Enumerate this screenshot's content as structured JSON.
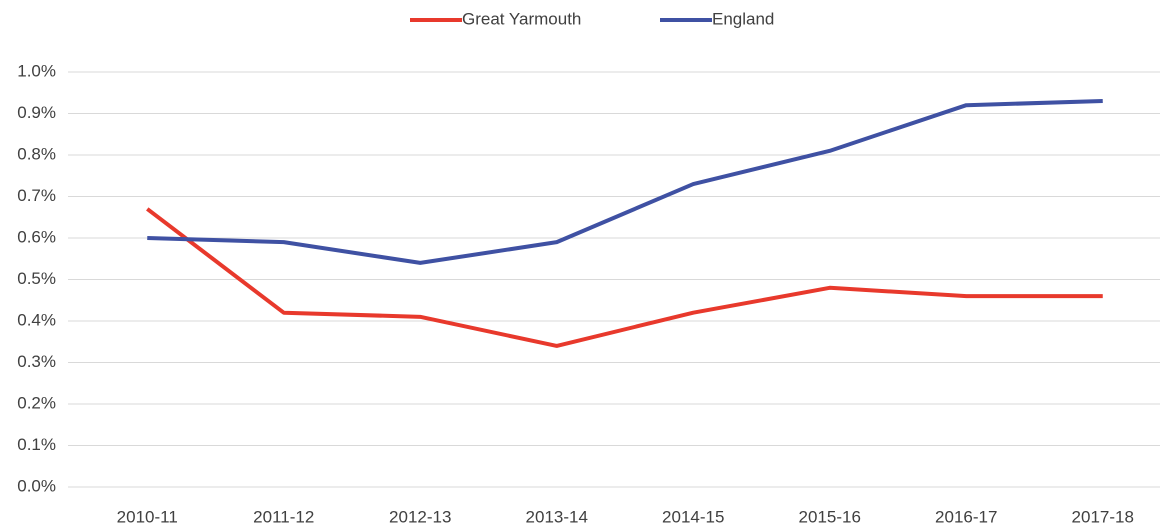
{
  "chart_data": {
    "type": "line",
    "categories": [
      "2010-11",
      "2011-12",
      "2012-13",
      "2013-14",
      "2014-15",
      "2015-16",
      "2016-17",
      "2017-18"
    ],
    "series": [
      {
        "name": "Great Yarmouth",
        "color": "#e8392c",
        "values": [
          0.67,
          0.42,
          0.41,
          0.34,
          0.42,
          0.48,
          0.46,
          0.46
        ]
      },
      {
        "name": "England",
        "color": "#3f51a3",
        "values": [
          0.6,
          0.59,
          0.54,
          0.59,
          0.73,
          0.81,
          0.92,
          0.93
        ]
      }
    ],
    "ylim": [
      0,
      1.0
    ],
    "yticks": [
      {
        "value": 0,
        "label": "0.0%"
      },
      {
        "value": 0.1,
        "label": "0.1%"
      },
      {
        "value": 0.2,
        "label": "0.2%"
      },
      {
        "value": 0.3,
        "label": "0.3%"
      },
      {
        "value": 0.4,
        "label": "0.4%"
      },
      {
        "value": 0.5,
        "label": "0.5%"
      },
      {
        "value": 0.6,
        "label": "0.6%"
      },
      {
        "value": 0.7,
        "label": "0.7%"
      },
      {
        "value": 0.8,
        "label": "0.8%"
      },
      {
        "value": 0.9,
        "label": "0.9%"
      },
      {
        "value": 1.0,
        "label": "1.0%"
      }
    ],
    "grid": true,
    "legend": "top"
  }
}
